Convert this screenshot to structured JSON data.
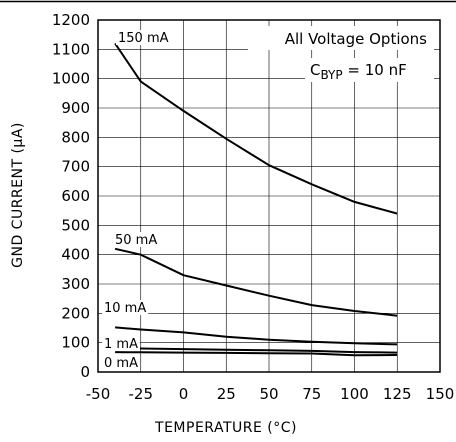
{
  "chart_data": {
    "type": "line",
    "xlabel": "TEMPERATURE (°C)",
    "ylabel": "GND CURRENT (μA)",
    "xlim": [
      -50,
      150
    ],
    "ylim": [
      0,
      1200
    ],
    "x_ticks": [
      "-50",
      "-25",
      "0",
      "25",
      "50",
      "75",
      "100",
      "125",
      "150"
    ],
    "y_ticks": [
      "0",
      "100",
      "200",
      "300",
      "400",
      "500",
      "600",
      "700",
      "800",
      "900",
      "1000",
      "1100",
      "1200"
    ],
    "grid": true,
    "annotations": {
      "line1": "All Voltage Options",
      "cbyp_main": "C",
      "cbyp_sub": "BYP",
      "cbyp_value": " = 10 nF"
    },
    "series": [
      {
        "name": "150 mA",
        "x": [
          -40,
          -25,
          0,
          25,
          50,
          75,
          100,
          125
        ],
        "y": [
          1120,
          990,
          890,
          795,
          705,
          640,
          580,
          540
        ]
      },
      {
        "name": "50 mA",
        "x": [
          -40,
          -25,
          0,
          25,
          50,
          75,
          100,
          125
        ],
        "y": [
          420,
          400,
          330,
          295,
          260,
          228,
          208,
          192
        ]
      },
      {
        "name": "10 mA",
        "x": [
          -40,
          -25,
          0,
          25,
          50,
          75,
          100,
          125
        ],
        "y": [
          152,
          145,
          135,
          120,
          110,
          103,
          98,
          94
        ]
      },
      {
        "name": "1 mA",
        "x": [
          -40,
          -25,
          0,
          25,
          50,
          75,
          100,
          125
        ],
        "y": [
          82,
          80,
          78,
          76,
          74,
          72,
          68,
          66
        ]
      },
      {
        "name": "0 mA",
        "x": [
          -40,
          -25,
          0,
          25,
          50,
          75,
          100,
          125
        ],
        "y": [
          68,
          67,
          66,
          65,
          64,
          63,
          57,
          58
        ]
      }
    ]
  }
}
